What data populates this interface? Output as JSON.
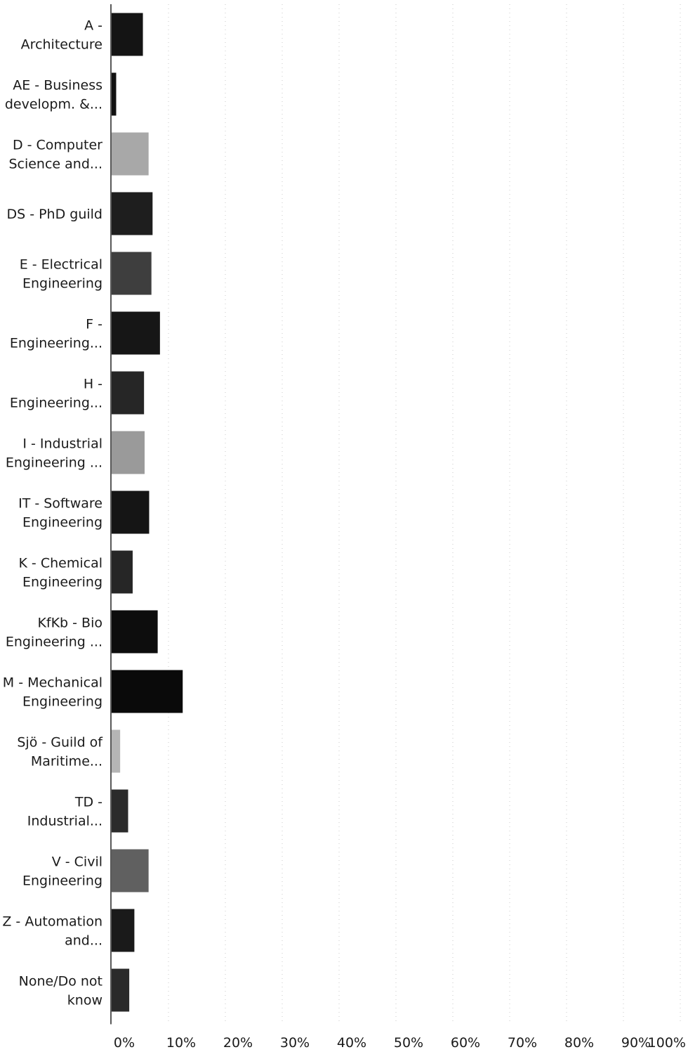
{
  "chart_data": {
    "type": "bar",
    "orientation": "horizontal",
    "categories": [
      [
        "A -",
        "Architecture"
      ],
      [
        "AE - Business",
        "developm. &..."
      ],
      [
        "D - Computer",
        "Science and..."
      ],
      [
        "DS - PhD guild"
      ],
      [
        "E - Electrical",
        "Engineering"
      ],
      [
        "F -",
        "Engineering..."
      ],
      [
        "H -",
        "Engineering..."
      ],
      [
        "I - Industrial",
        "Engineering ..."
      ],
      [
        "IT - Software",
        "Engineering"
      ],
      [
        "K - Chemical",
        "Engineering"
      ],
      [
        "KfKb - Bio",
        "Engineering ..."
      ],
      [
        "M - Mechanical",
        "Engineering"
      ],
      [
        "Sjö - Guild of",
        "Maritime..."
      ],
      [
        "TD -",
        "Industrial..."
      ],
      [
        "V - Civil",
        "Engineering"
      ],
      [
        "Z - Automation",
        "and..."
      ],
      [
        "None/Do not",
        "know"
      ]
    ],
    "values": [
      5.5,
      0.8,
      6.5,
      7.2,
      7.0,
      8.5,
      5.7,
      5.8,
      6.6,
      3.7,
      8.1,
      12.5,
      1.5,
      2.9,
      6.5,
      4.0,
      3.1
    ],
    "colors": [
      "#141414",
      "#111111",
      "#a8a8a8",
      "#1e1e1e",
      "#3e3e3e",
      "#161616",
      "#262626",
      "#9a9a9a",
      "#151515",
      "#262626",
      "#0d0d0d",
      "#0a0a0a",
      "#b5b5b5",
      "#2b2b2b",
      "#606060",
      "#1a1a1a",
      "#2a2a2a"
    ],
    "xlim": [
      0,
      100
    ],
    "xticks": [
      0,
      10,
      20,
      30,
      40,
      50,
      60,
      70,
      80,
      90,
      100
    ],
    "xtick_labels": [
      "0%",
      "10%",
      "20%",
      "30%",
      "40%",
      "50%",
      "60%",
      "70%",
      "80%",
      "90%",
      "100%"
    ],
    "grid": true,
    "legend": "none",
    "title": "",
    "xlabel": "",
    "ylabel": ""
  }
}
